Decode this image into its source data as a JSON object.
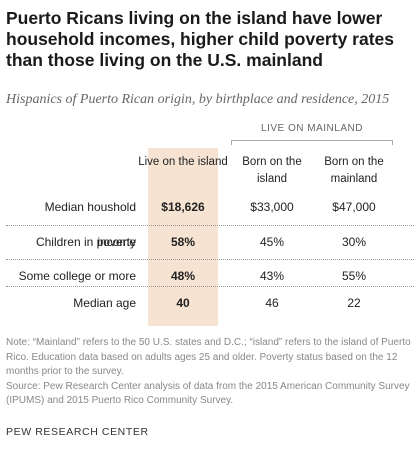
{
  "title": "Puerto Ricans living on the island have lower household incomes, higher child poverty rates than those living on the U.S. mainland",
  "subtitle": "Hispanics of Puerto Rican origin, by birthplace and residence, 2015",
  "column_group_label": "LIVE ON MAINLAND",
  "highlight_color": "#f7e3d2",
  "chart_data": {
    "type": "table",
    "columns": [
      "Live on the island",
      "Born on the island",
      "Born on the mainland"
    ],
    "rows": [
      {
        "label": "Median houshold income",
        "values": [
          "$18,626",
          "$33,000",
          "$47,000"
        ]
      },
      {
        "label": "Children in poverty",
        "values": [
          "58%",
          "45%",
          "30%"
        ]
      },
      {
        "label": "Some college or more",
        "values": [
          "48%",
          "43%",
          "55%"
        ]
      },
      {
        "label": "Median age",
        "values": [
          "40",
          "46",
          "22"
        ]
      }
    ]
  },
  "note": "Note: “Mainland” refers to the 50 U.S. states and D.C.; “island” refers to the island of Puerto Rico. Education data based on adults ages 25 and older. Poverty status based on the 12 months prior to the survey.",
  "source": "Source: Pew Research Center analysis of data from the 2015 American Community Survey (IPUMS) and 2015 Puerto Rico Community Survey.",
  "brand": "PEW RESEARCH CENTER"
}
